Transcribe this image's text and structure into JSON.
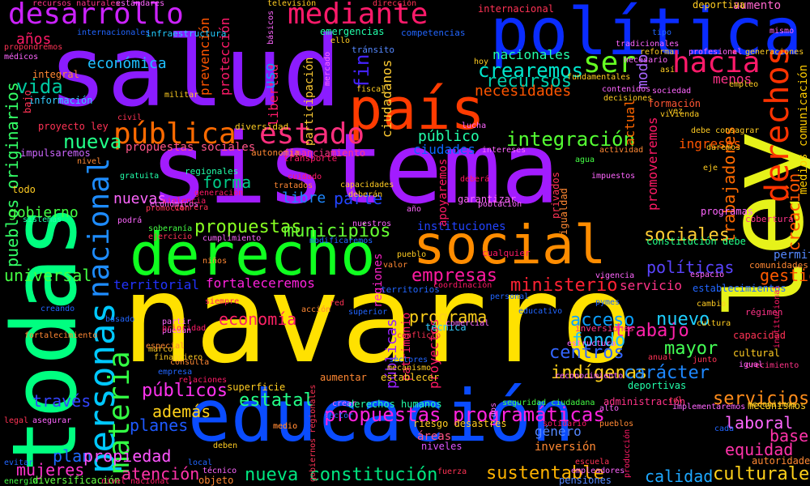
{
  "cloud": {
    "background": "#000000",
    "words": [
      {
        "text": "navarro",
        "color": "#ffe100"
      },
      {
        "text": "salud",
        "color": "#8b1cff"
      },
      {
        "text": "sistema",
        "color": "#a21cff"
      },
      {
        "text": "educación",
        "color": "#0a4cff"
      },
      {
        "text": "todas",
        "color": "#00ff80"
      },
      {
        "text": "ley",
        "color": "#e6f21a"
      },
      {
        "text": "política",
        "color": "#0a2cff"
      },
      {
        "text": "país",
        "color": "#ff3b00"
      },
      {
        "text": "derecho",
        "color": "#10ff20"
      },
      {
        "text": "social",
        "color": "#ff8c00"
      },
      {
        "text": "personas",
        "color": "#00c8ff"
      },
      {
        "text": "nacional",
        "color": "#1e8cff"
      },
      {
        "text": "desarrollo",
        "color": "#cc22ff"
      },
      {
        "text": "mediante",
        "color": "#ff1a6a"
      },
      {
        "text": "derechos",
        "color": "#ff3300"
      },
      {
        "text": "materia",
        "color": "#33ff44"
      },
      {
        "text": "pública",
        "color": "#ff6a00"
      },
      {
        "text": "estado",
        "color": "#ff2f7d"
      },
      {
        "text": "hacia",
        "color": "#ff1a6a"
      },
      {
        "text": "ser",
        "color": "#66ff22"
      },
      {
        "text": "integración",
        "color": "#55ff33"
      },
      {
        "text": "crearemos",
        "color": "#00e6cc"
      },
      {
        "text": "propuestas programáticas",
        "color": "#ff22dd"
      },
      {
        "text": "nueva constitución",
        "color": "#00e680"
      },
      {
        "text": "sustentable",
        "color": "#ffb300"
      },
      {
        "text": "servicios",
        "color": "#ff8c1a"
      },
      {
        "text": "culturales",
        "color": "#ffd11a"
      },
      {
        "text": "propuestas",
        "color": "#88ff22"
      },
      {
        "text": "municipios",
        "color": "#66ff33"
      },
      {
        "text": "empresas",
        "color": "#ff1aa0"
      },
      {
        "text": "públicos",
        "color": "#ff33ee"
      },
      {
        "text": "estatal",
        "color": "#22ff88"
      },
      {
        "text": "pueblos originarios",
        "color": "#33ff66"
      },
      {
        "text": "universal",
        "color": "#44ff44"
      },
      {
        "text": "acceso",
        "color": "#0aa0ff"
      },
      {
        "text": "ministerio",
        "color": "#ff2233"
      },
      {
        "text": "trabajadores",
        "color": "#ff6a00"
      },
      {
        "text": "creación",
        "color": "#ff5500"
      },
      {
        "text": "sociales",
        "color": "#ffcc33"
      },
      {
        "text": "políticas",
        "color": "#5a44ff"
      },
      {
        "text": "gestión",
        "color": "#ff5a00"
      },
      {
        "text": "mayor",
        "color": "#44ff55"
      },
      {
        "text": "nuevo",
        "color": "#1ecfff"
      },
      {
        "text": "trabajo",
        "color": "#ff22aa"
      },
      {
        "text": "centros",
        "color": "#3366ff"
      },
      {
        "text": "fondo",
        "color": "#1ec0ff"
      },
      {
        "text": "indígenas",
        "color": "#ffd11a"
      },
      {
        "text": "carácter",
        "color": "#1e88ff"
      },
      {
        "text": "laboral",
        "color": "#ff66ff"
      },
      {
        "text": "equidad",
        "color": "#ff33aa"
      },
      {
        "text": "base",
        "color": "#ff33aa"
      },
      {
        "text": "calidad",
        "color": "#1ea8ff"
      },
      {
        "text": "atención",
        "color": "#ff33aa"
      },
      {
        "text": "planes",
        "color": "#1e5aff"
      },
      {
        "text": "plan",
        "color": "#1e6aff"
      },
      {
        "text": "propiedad",
        "color": "#ff55ff"
      },
      {
        "text": "mujeres",
        "color": "#ff33cc"
      },
      {
        "text": "través",
        "color": "#3344ff"
      },
      {
        "text": "además",
        "color": "#ffd11a"
      },
      {
        "text": "economía",
        "color": "#ff2266"
      },
      {
        "text": "programa",
        "color": "#ffd11a"
      },
      {
        "text": "vida",
        "color": "#00c8a0"
      },
      {
        "text": "nueva",
        "color": "#22ff88"
      },
      {
        "text": "forma",
        "color": "#00cc88"
      },
      {
        "text": "parte",
        "color": "#2244ff"
      },
      {
        "text": "libre",
        "color": "#1e88ff"
      },
      {
        "text": "nuevas",
        "color": "#ff66ff"
      },
      {
        "text": "gobierno",
        "color": "#44ff44"
      },
      {
        "text": "económica",
        "color": "#1ec0ff"
      },
      {
        "text": "años",
        "color": "#ff1a66"
      },
      {
        "text": "recursos",
        "color": "#00ccaa"
      },
      {
        "text": "necesidades",
        "color": "#ff5500"
      },
      {
        "text": "nacionales",
        "color": "#22ffaa"
      },
      {
        "text": "público",
        "color": "#22ffaa"
      },
      {
        "text": "ciudades",
        "color": "#0a66ff"
      },
      {
        "text": "prevención",
        "color": "#ff5500"
      },
      {
        "text": "protección",
        "color": "#ff1a6a"
      },
      {
        "text": "libertad",
        "color": "#ff1a6a"
      },
      {
        "text": "participación",
        "color": "#ffcc33"
      },
      {
        "text": "ciudadanos",
        "color": "#ffcc33"
      },
      {
        "text": "fin",
        "color": "#4422ff"
      },
      {
        "text": "uso",
        "color": "#0aa0ff"
      },
      {
        "text": "menos",
        "color": "#ff3388"
      },
      {
        "text": "modo",
        "color": "#aa66ff"
      },
      {
        "text": "actual",
        "color": "#ff6600"
      },
      {
        "text": "promoveremos",
        "color": "#ff1a66"
      },
      {
        "text": "ingresos",
        "color": "#ff5500"
      },
      {
        "text": "servicio",
        "color": "#ff3388"
      },
      {
        "text": "fortaleceremos",
        "color": "#ff22dd"
      },
      {
        "text": "territorial",
        "color": "#2233ff"
      },
      {
        "text": "proyectos",
        "color": "#ff1a66"
      },
      {
        "text": "patrimonio",
        "color": "#ff1a66"
      },
      {
        "text": "públicas",
        "color": "#9922ff"
      },
      {
        "text": "regiones",
        "color": "#ff22cc"
      },
      {
        "text": "instituciones",
        "color": "#2244ff"
      },
      {
        "text": "apoyaremos",
        "color": "#ff1a66"
      },
      {
        "text": "medios comunicación",
        "color": "#ffcc00"
      },
      {
        "text": "aumento",
        "color": "#ff66cc"
      },
      {
        "text": "formación",
        "color": "#ff5533"
      },
      {
        "text": "permita",
        "color": "#5588ff"
      },
      {
        "text": "constitución debe",
        "color": "#22ff88"
      },
      {
        "text": "género",
        "color": "#5588ff"
      },
      {
        "text": "inversión",
        "color": "#ff8833"
      },
      {
        "text": "áreas",
        "color": "#ff5588"
      },
      {
        "text": "niveles",
        "color": "#dd55ff"
      },
      {
        "text": "propuestas sociales",
        "color": "#ff5588"
      },
      {
        "text": "proyecto ley",
        "color": "#ff3355"
      },
      {
        "text": "infraestructura",
        "color": "#22ccff"
      },
      {
        "text": "emergencias",
        "color": "#22ffaa"
      },
      {
        "text": "internacional",
        "color": "#ff3355"
      },
      {
        "text": "deportiva",
        "color": "#ffcc22"
      },
      {
        "text": "impulsaremos",
        "color": "#cc66ff"
      },
      {
        "text": "información",
        "color": "#33ccff"
      },
      {
        "text": "integral",
        "color": "#ff8833"
      },
      {
        "text": "diversificación",
        "color": "#66ff44"
      },
      {
        "text": "objeto",
        "color": "#ff8833"
      },
      {
        "text": "pensiones",
        "color": "#5588ff"
      },
      {
        "text": "superficie",
        "color": "#ffcc22"
      },
      {
        "text": "administración",
        "color": "#ff3388"
      },
      {
        "text": "deportivas",
        "color": "#22ffaa"
      },
      {
        "text": "riesgo desastres",
        "color": "#ffcc22"
      },
      {
        "text": "seguridad ciudadana",
        "color": "#44ff44"
      },
      {
        "text": "derechos humanos",
        "color": "#22ffaa"
      },
      {
        "text": "establecer",
        "color": "#ffcc22"
      },
      {
        "text": "aumentar",
        "color": "#ff8833"
      },
      {
        "text": "mecanismos",
        "color": "#ffcc22"
      },
      {
        "text": "autoridades",
        "color": "#ff8833"
      },
      {
        "text": "cultural",
        "color": "#ffcc22"
      },
      {
        "text": "capacidad",
        "color": "#ff3355"
      },
      {
        "text": "régimen",
        "color": "#ff3388"
      },
      {
        "text": "cobertura",
        "color": "#ff3388"
      },
      {
        "text": "programas",
        "color": "#ff66ff"
      },
      {
        "text": "comunidades",
        "color": "#ff8833"
      },
      {
        "text": "establecimientos",
        "color": "#2266ff"
      },
      {
        "text": "garantizar",
        "color": "#ff66ff"
      },
      {
        "text": "cualquier",
        "color": "#ff1a66"
      },
      {
        "text": "privados",
        "color": "#ff3355"
      },
      {
        "text": "igualdad",
        "color": "#ff8833"
      },
      {
        "text": "territorios",
        "color": "#2266ff"
      },
      {
        "text": "técnica",
        "color": "#33ccff"
      },
      {
        "text": "inversiones",
        "color": "#ff3388"
      },
      {
        "text": "regionales",
        "color": "#22ffaa"
      },
      {
        "text": "financiamiento",
        "color": "#ff3388"
      },
      {
        "text": "autonomía",
        "color": "#ff8833"
      },
      {
        "text": "transporte",
        "color": "#ff1a66"
      },
      {
        "text": "diversidad",
        "color": "#ffcc22"
      },
      {
        "text": "tránsito",
        "color": "#5588ff"
      },
      {
        "text": "competencias",
        "color": "#2266ff"
      },
      {
        "text": "recursos naturales",
        "color": "#ff3388"
      },
      {
        "text": "estándares",
        "color": "#ff66ff"
      },
      {
        "text": "televisión",
        "color": "#ffcc22"
      },
      {
        "text": "dirección",
        "color": "#ff3355"
      },
      {
        "text": "internacionales",
        "color": "#2266ff"
      },
      {
        "text": "médicos",
        "color": "#ff66ff"
      },
      {
        "text": "propondremos",
        "color": "#ff3355"
      },
      {
        "text": "violencia",
        "color": "#ff1a66"
      },
      {
        "text": "carrera",
        "color": "#ff3355"
      },
      {
        "text": "ejercicio",
        "color": "#ff3355"
      },
      {
        "text": "cumplimiento",
        "color": "#ff66ff"
      },
      {
        "text": "soberanía",
        "color": "#44ff44"
      },
      {
        "text": "niños",
        "color": "#ff8833"
      },
      {
        "text": "sistemas",
        "color": "#22ffaa"
      },
      {
        "text": "podrá",
        "color": "#ff66ff"
      },
      {
        "text": "gratuita",
        "color": "#22ffaa"
      },
      {
        "text": "tratados",
        "color": "#ff8833"
      },
      {
        "text": "cuidado",
        "color": "#ff1a66"
      },
      {
        "text": "crecimiento",
        "color": "#ff3388"
      },
      {
        "text": "consulta",
        "color": "#ff8833"
      },
      {
        "text": "empresa",
        "color": "#2266ff"
      },
      {
        "text": "marco",
        "color": "#ffcc22"
      },
      {
        "text": "deben",
        "color": "#ffcc22"
      },
      {
        "text": "especial",
        "color": "#ff8833"
      },
      {
        "text": "financiero",
        "color": "#ffcc22"
      },
      {
        "text": "nivel nacional",
        "color": "#ff1a66"
      },
      {
        "text": "energía",
        "color": "#44ff44"
      },
      {
        "text": "fortalecimiento",
        "color": "#ff8833"
      },
      {
        "text": "creando",
        "color": "#2266ff"
      },
      {
        "text": "evitar",
        "color": "#2266ff"
      },
      {
        "text": "asegurar",
        "color": "#ff66ff"
      },
      {
        "text": "legal",
        "color": "#ff3355"
      },
      {
        "text": "sector",
        "color": "#2266ff"
      },
      {
        "text": "medio",
        "color": "#ff8833"
      },
      {
        "text": "escuela",
        "color": "#ff3355"
      },
      {
        "text": "pueblos",
        "color": "#ff8833"
      },
      {
        "text": "solidario",
        "color": "#ff1a66"
      },
      {
        "text": "cultura",
        "color": "#ffcc22"
      },
      {
        "text": "junto",
        "color": "#ff3355"
      },
      {
        "text": "anual",
        "color": "#ff3355"
      },
      {
        "text": "vigencia",
        "color": "#ff66ff"
      },
      {
        "text": "espacio",
        "color": "#ff66ff"
      },
      {
        "text": "cambio",
        "color": "#ffcc22"
      },
      {
        "text": "empleo",
        "color": "#ffcc22"
      },
      {
        "text": "sociedad",
        "color": "#ff66ff"
      },
      {
        "text": "acción",
        "color": "#ff8833"
      },
      {
        "text": "superior",
        "color": "#2266ff"
      },
      {
        "text": "personal",
        "color": "#2266ff"
      },
      {
        "text": "comercial",
        "color": "#ff66ff"
      },
      {
        "text": "pymes",
        "color": "#2266ff"
      },
      {
        "text": "actividad",
        "color": "#ff8833"
      },
      {
        "text": "intereses",
        "color": "#ff66ff"
      },
      {
        "text": "agua",
        "color": "#44ff44"
      },
      {
        "text": "impuestos",
        "color": "#ff66ff"
      },
      {
        "text": "población",
        "color": "#ff66ff"
      },
      {
        "text": "capacidades",
        "color": "#ffcc22"
      },
      {
        "text": "deberán",
        "color": "#ffcc22"
      },
      {
        "text": "nuestros",
        "color": "#ff66ff"
      },
      {
        "text": "año",
        "color": "#ff66ff"
      },
      {
        "text": "valor",
        "color": "#ff8833"
      },
      {
        "text": "pueblo",
        "color": "#ffcc22"
      },
      {
        "text": "modificaremos",
        "color": "#2266ff"
      },
      {
        "text": "deberá",
        "color": "#ff1a66"
      },
      {
        "text": "lucha",
        "color": "#ff66ff"
      },
      {
        "text": "eje",
        "color": "#ffcc22"
      },
      {
        "text": "debe consagrar",
        "color": "#ffcc22"
      },
      {
        "text": "vez",
        "color": "#ffcc22"
      },
      {
        "text": "tipo",
        "color": "#2266ff"
      },
      {
        "text": "mismo",
        "color": "#ff66ff"
      },
      {
        "text": "generaciones",
        "color": "#ffcc22"
      },
      {
        "text": "profesional",
        "color": "#ff66ff"
      },
      {
        "text": "así",
        "color": "#ffcc22"
      },
      {
        "text": "necesario",
        "color": "#ff66ff"
      },
      {
        "text": "reforma",
        "color": "#ffcc22"
      },
      {
        "text": "tradicionales",
        "color": "#ff66ff"
      },
      {
        "text": "fundamentales",
        "color": "#ffcc22"
      },
      {
        "text": "hoy",
        "color": "#ffcc22"
      },
      {
        "text": "militar",
        "color": "#ffcc22"
      },
      {
        "text": "bajo",
        "color": "#ff3355"
      },
      {
        "text": "civil",
        "color": "#ff3355"
      },
      {
        "text": "nivel",
        "color": "#ff8833"
      },
      {
        "text": "todo",
        "color": "#ffcc22"
      },
      {
        "text": "promoción",
        "color": "#ff3355"
      },
      {
        "text": "económicos",
        "color": "#ff66ff"
      },
      {
        "text": "generación",
        "color": "#ff1a66"
      },
      {
        "text": "relaciones",
        "color": "#ff1a66"
      },
      {
        "text": "red",
        "color": "#ff3355"
      },
      {
        "text": "fuerza",
        "color": "#ff3355"
      },
      {
        "text": "local",
        "color": "#2266ff"
      },
      {
        "text": "basado",
        "color": "#2266ff"
      },
      {
        "text": "partir",
        "color": "#ff66ff"
      },
      {
        "text": "puedan",
        "color": "#ff66ff"
      },
      {
        "text": "prioridad",
        "color": "#ff1a66"
      },
      {
        "text": "siempre",
        "color": "#ff1a66"
      },
      {
        "text": "conflicto",
        "color": "#ff3355"
      },
      {
        "text": "coordinación",
        "color": "#ff1a66"
      },
      {
        "text": "sectores",
        "color": "#2266ff"
      },
      {
        "text": "mecanismo",
        "color": "#ffcc22"
      },
      {
        "text": "alto",
        "color": "#ff66ff"
      },
      {
        "text": "básicos",
        "color": "#ff66ff"
      },
      {
        "text": "ello",
        "color": "#ffcc22"
      },
      {
        "text": "fiscal",
        "color": "#ffcc22"
      },
      {
        "text": "mercado",
        "color": "#ff66ff"
      },
      {
        "text": "contenidos",
        "color": "#ff66ff"
      },
      {
        "text": "decisiones",
        "color": "#ffcc22"
      },
      {
        "text": "vivienda",
        "color": "#ffcc22"
      },
      {
        "text": "daremos",
        "color": "#ffcc22"
      },
      {
        "text": "rol",
        "color": "#ff3355"
      },
      {
        "text": "implementaremos",
        "color": "#ff66ff"
      },
      {
        "text": "cada",
        "color": "#2266ff"
      },
      {
        "text": "medio",
        "color": "#ff8833"
      },
      {
        "text": "producción",
        "color": "#ff1a66"
      },
      {
        "text": "empleadores",
        "color": "#ff66ff"
      },
      {
        "text": "reconocimiento",
        "color": "#ff66ff"
      },
      {
        "text": "gobiernos regionales",
        "color": "#ff3355"
      },
      {
        "text": "mecanismos",
        "color": "#ffcc22"
      },
      {
        "text": "igual",
        "color": "#ff66ff"
      },
      {
        "text": "técnico",
        "color": "#ff66ff"
      },
      {
        "text": "dos",
        "color": "#ff66ff"
      },
      {
        "text": "crear",
        "color": "#ff66ff"
      },
      {
        "text": "educativo",
        "color": "#2266ff"
      },
      {
        "text": "estructura",
        "color": "#ff66ff"
      },
      {
        "text": "institucional",
        "color": "#ff1a66"
      }
    ]
  }
}
